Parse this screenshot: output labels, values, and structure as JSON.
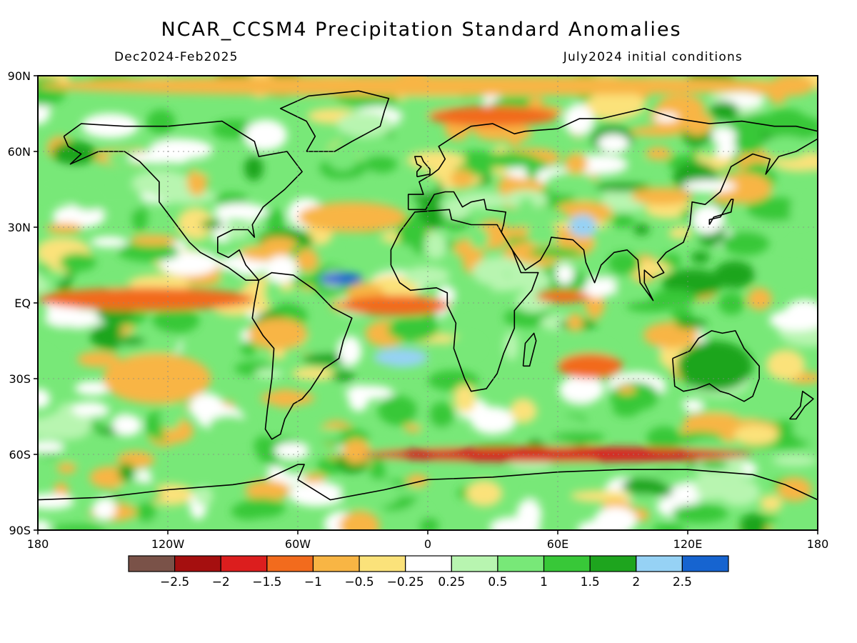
{
  "title": "NCAR_CCSM4 Precipitation Standard Anomalies",
  "period": "Dec2024-Feb2025",
  "init": "July2024 initial conditions",
  "map": {
    "lon_ticks": [
      {
        "lon": -180,
        "label": "180"
      },
      {
        "lon": -120,
        "label": "120W"
      },
      {
        "lon": -60,
        "label": "60W"
      },
      {
        "lon": 0,
        "label": "0"
      },
      {
        "lon": 60,
        "label": "60E"
      },
      {
        "lon": 120,
        "label": "120E"
      },
      {
        "lon": 180,
        "label": "180"
      }
    ],
    "lat_ticks": [
      {
        "lat": 90,
        "label": "90N"
      },
      {
        "lat": 60,
        "label": "60N"
      },
      {
        "lat": 30,
        "label": "30N"
      },
      {
        "lat": 0,
        "label": "EQ"
      },
      {
        "lat": -30,
        "label": "30S"
      },
      {
        "lat": -60,
        "label": "60S"
      },
      {
        "lat": -90,
        "label": "90S"
      }
    ],
    "lon_range": [
      -180,
      180
    ],
    "lat_range": [
      -90,
      90
    ]
  },
  "colorbar": {
    "colors": [
      "#7a5248",
      "#a50f0f",
      "#dc1e1e",
      "#f26b1d",
      "#f8b544",
      "#fbe27a",
      "#ffffff",
      "#b8f5b0",
      "#78e878",
      "#38c838",
      "#1ea51e",
      "#96d2f5",
      "#1664d0"
    ],
    "labels": [
      "-2.5",
      "-2",
      "-1.5",
      "-1",
      "-0.5",
      "-0.25",
      "0.25",
      "0.5",
      "1",
      "1.5",
      "2",
      "2.5"
    ]
  },
  "regions": [
    {
      "name": "arctic-dry-band",
      "level": -0.75,
      "lon": [
        -180,
        180
      ],
      "lat": [
        82,
        90
      ]
    },
    {
      "name": "greenland-arctic-dry",
      "level": -1.5,
      "lon": [
        0,
        60
      ],
      "lat": [
        70,
        78
      ]
    },
    {
      "name": "north-atlantic-dry",
      "level": -1,
      "lon": [
        -60,
        -10
      ],
      "lat": [
        28,
        40
      ]
    },
    {
      "name": "equatorial-pacific-dry",
      "level": -1.5,
      "lon": [
        -180,
        -80
      ],
      "lat": [
        -3,
        6
      ]
    },
    {
      "name": "equatorial-atlantic-dry",
      "level": -1.5,
      "lon": [
        -40,
        10
      ],
      "lat": [
        -5,
        3
      ]
    },
    {
      "name": "indian-ocean-dry",
      "level": -1.5,
      "lon": [
        50,
        75
      ],
      "lat": [
        0,
        5
      ]
    },
    {
      "name": "south-indian-dry",
      "level": -1.5,
      "lon": [
        60,
        90
      ],
      "lat": [
        -30,
        -20
      ]
    },
    {
      "name": "southern-ocean-dry",
      "level": -2,
      "lon": [
        -30,
        150
      ],
      "lat": [
        -63,
        -57
      ]
    },
    {
      "name": "south-pacific-dry",
      "level": -1,
      "lon": [
        -150,
        -100
      ],
      "lat": [
        -40,
        -20
      ]
    },
    {
      "name": "caribbean-wet",
      "level": 2.5,
      "lon": [
        -50,
        -30
      ],
      "lat": [
        7,
        12
      ]
    },
    {
      "name": "south-atlantic-wet",
      "level": 2,
      "lon": [
        -25,
        0
      ],
      "lat": [
        -25,
        -18
      ]
    },
    {
      "name": "india-wet",
      "level": 2,
      "lon": [
        65,
        78
      ],
      "lat": [
        26,
        35
      ]
    },
    {
      "name": "australia-wet",
      "level": 1.5,
      "lon": [
        115,
        150
      ],
      "lat": [
        -35,
        -15
      ]
    }
  ]
}
